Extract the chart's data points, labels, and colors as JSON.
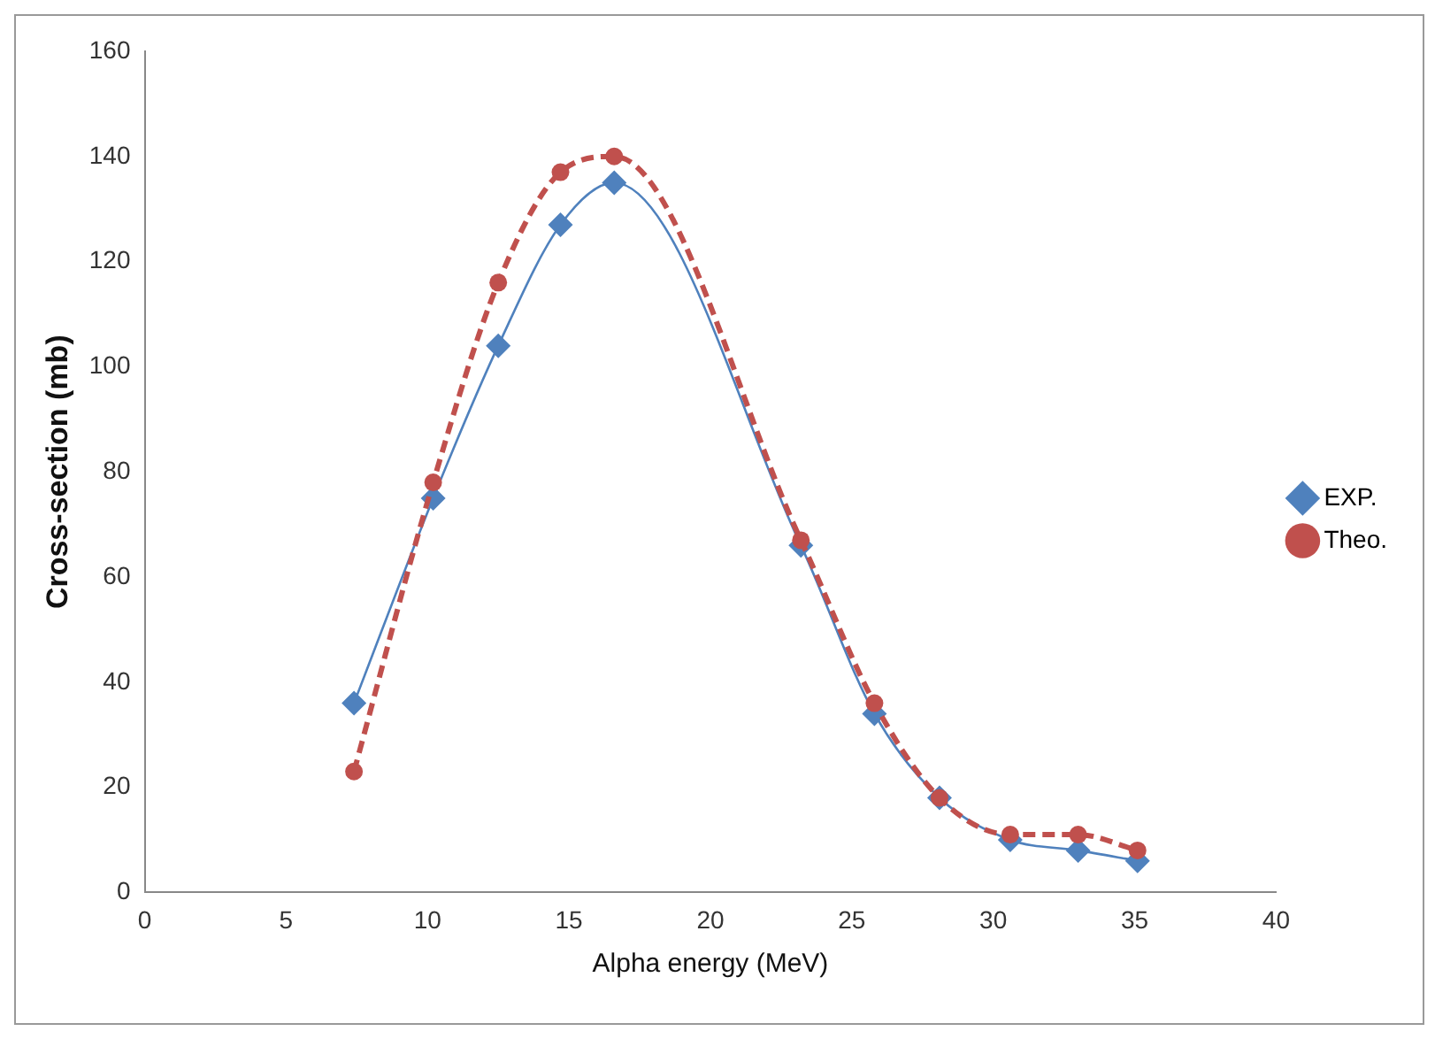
{
  "chart_data": {
    "type": "line",
    "xlabel": "Alpha energy (MeV)",
    "ylabel": "Cross-section (mb)",
    "xlim": [
      0,
      40
    ],
    "xticks": [
      0,
      5,
      10,
      15,
      20,
      25,
      30,
      35,
      40
    ],
    "ylim": [
      0,
      160
    ],
    "yticks": [
      0,
      20,
      40,
      60,
      80,
      100,
      120,
      140,
      160
    ],
    "grid": false,
    "legend": "right",
    "series": [
      {
        "name": "EXP.",
        "color": "#4f81bd",
        "marker": "diamond",
        "line_style": "solid",
        "x": [
          7.4,
          10.2,
          12.5,
          14.7,
          16.6,
          23.2,
          25.8,
          28.1,
          30.6,
          33.0,
          35.1
        ],
        "values": [
          36,
          75,
          104,
          127,
          135,
          66,
          34,
          18,
          10,
          8,
          6
        ]
      },
      {
        "name": "Theo.",
        "color": "#c0504d",
        "marker": "circle",
        "line_style": "dashed",
        "x": [
          7.4,
          10.2,
          12.5,
          14.7,
          16.6,
          23.2,
          25.8,
          28.1,
          30.6,
          33.0,
          35.1
        ],
        "values": [
          23,
          78,
          116,
          137,
          140,
          67,
          36,
          18,
          11,
          11,
          8
        ]
      }
    ]
  }
}
